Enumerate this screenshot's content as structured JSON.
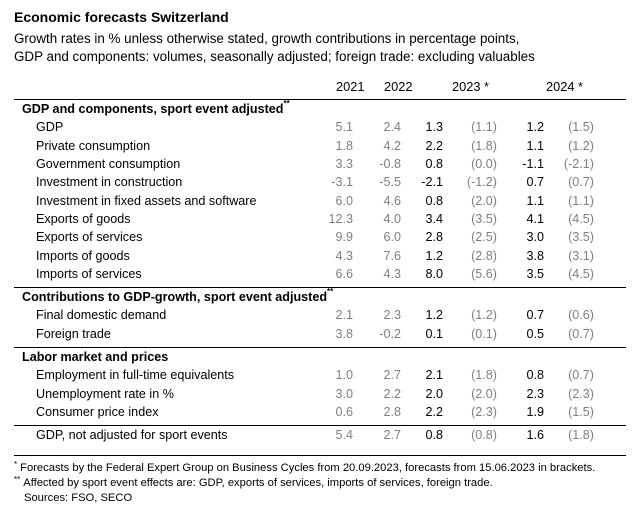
{
  "title": "Economic forecasts Switzerland",
  "subtitle_line1": "Growth rates in % unless otherwise stated, growth contributions in percentage points,",
  "subtitle_line2": "GDP and components: volumes, seasonally adjusted; foreign trade: excluding valuables",
  "columns": {
    "y2021": "2021",
    "y2022": "2022",
    "y2023": "2023 *",
    "y2024": "2024 *"
  },
  "sections": {
    "gdp": {
      "heading": "GDP and components, sport event adjusted",
      "mark": "**",
      "rows": [
        {
          "label": "GDP",
          "v2021": "5.1",
          "v2022": "2.4",
          "f2023": "1.3",
          "p2023": "(1.1)",
          "f2024": "1.2",
          "p2024": "(1.5)"
        },
        {
          "label": "Private consumption",
          "v2021": "1.8",
          "v2022": "4.2",
          "f2023": "2.2",
          "p2023": "(1.8)",
          "f2024": "1.1",
          "p2024": "(1.2)"
        },
        {
          "label": "Government consumption",
          "v2021": "3.3",
          "v2022": "-0.8",
          "f2023": "0.8",
          "p2023": "(0.0)",
          "f2024": "-1.1",
          "p2024": "(-2.1)"
        },
        {
          "label": "Investment in construction",
          "v2021": "-3.1",
          "v2022": "-5.5",
          "f2023": "-2.1",
          "p2023": "(-1.2)",
          "f2024": "0.7",
          "p2024": "(0.7)"
        },
        {
          "label": "Investment in fixed assets and software",
          "v2021": "6.0",
          "v2022": "4.6",
          "f2023": "0.8",
          "p2023": "(2.0)",
          "f2024": "1.1",
          "p2024": "(1.1)"
        },
        {
          "label": "Exports of goods",
          "v2021": "12.3",
          "v2022": "4.0",
          "f2023": "3.4",
          "p2023": "(3.5)",
          "f2024": "4.1",
          "p2024": "(4.5)"
        },
        {
          "label": "Exports of services",
          "v2021": "9.9",
          "v2022": "6.0",
          "f2023": "2.8",
          "p2023": "(2.5)",
          "f2024": "3.0",
          "p2024": "(3.5)"
        },
        {
          "label": "Imports of goods",
          "v2021": "4.3",
          "v2022": "7.6",
          "f2023": "1.2",
          "p2023": "(2.8)",
          "f2024": "3.8",
          "p2024": "(3.1)"
        },
        {
          "label": "Imports of services",
          "v2021": "6.6",
          "v2022": "4.3",
          "f2023": "8.0",
          "p2023": "(5.6)",
          "f2024": "3.5",
          "p2024": "(4.5)"
        }
      ]
    },
    "contrib": {
      "heading": "Contributions to GDP-growth, sport event adjusted",
      "mark": "**",
      "rows": [
        {
          "label": "Final domestic demand",
          "v2021": "2.1",
          "v2022": "2.3",
          "f2023": "1.2",
          "p2023": "(1.2)",
          "f2024": "0.7",
          "p2024": "(0.6)"
        },
        {
          "label": "Foreign trade",
          "v2021": "3.8",
          "v2022": "-0.2",
          "f2023": "0.1",
          "p2023": "(0.1)",
          "f2024": "0.5",
          "p2024": "(0.7)"
        }
      ]
    },
    "labor": {
      "heading": "Labor market and prices",
      "rows": [
        {
          "label": "Employment in full-time equivalents",
          "v2021": "1.0",
          "v2022": "2.7",
          "f2023": "2.1",
          "p2023": "(1.8)",
          "f2024": "0.8",
          "p2024": "(0.7)"
        },
        {
          "label": "Unemployment rate in %",
          "v2021": "3.0",
          "v2022": "2.2",
          "f2023": "2.0",
          "p2023": "(2.0)",
          "f2024": "2.3",
          "p2024": "(2.3)"
        },
        {
          "label": "Consumer price index",
          "v2021": "0.6",
          "v2022": "2.8",
          "f2023": "2.2",
          "p2023": "(2.3)",
          "f2024": "1.9",
          "p2024": "(1.5)"
        }
      ]
    },
    "nonadj": {
      "row": {
        "label": "GDP, not adjusted for sport events",
        "v2021": "5.4",
        "v2022": "2.7",
        "f2023": "0.8",
        "p2023": "(0.8)",
        "f2024": "1.6",
        "p2024": "(1.8)"
      }
    }
  },
  "footnotes": {
    "n1_mark": "*",
    "n1": "Forecasts by the Federal Expert Group on Business Cycles from 20.09.2023, forecasts from 15.06.2023 in brackets.",
    "n2_mark": "**",
    "n2": "Affected by sport event effects are: GDP, exports of services, imports of services, foreign trade.",
    "sources": "Sources: FSO, SECO"
  }
}
